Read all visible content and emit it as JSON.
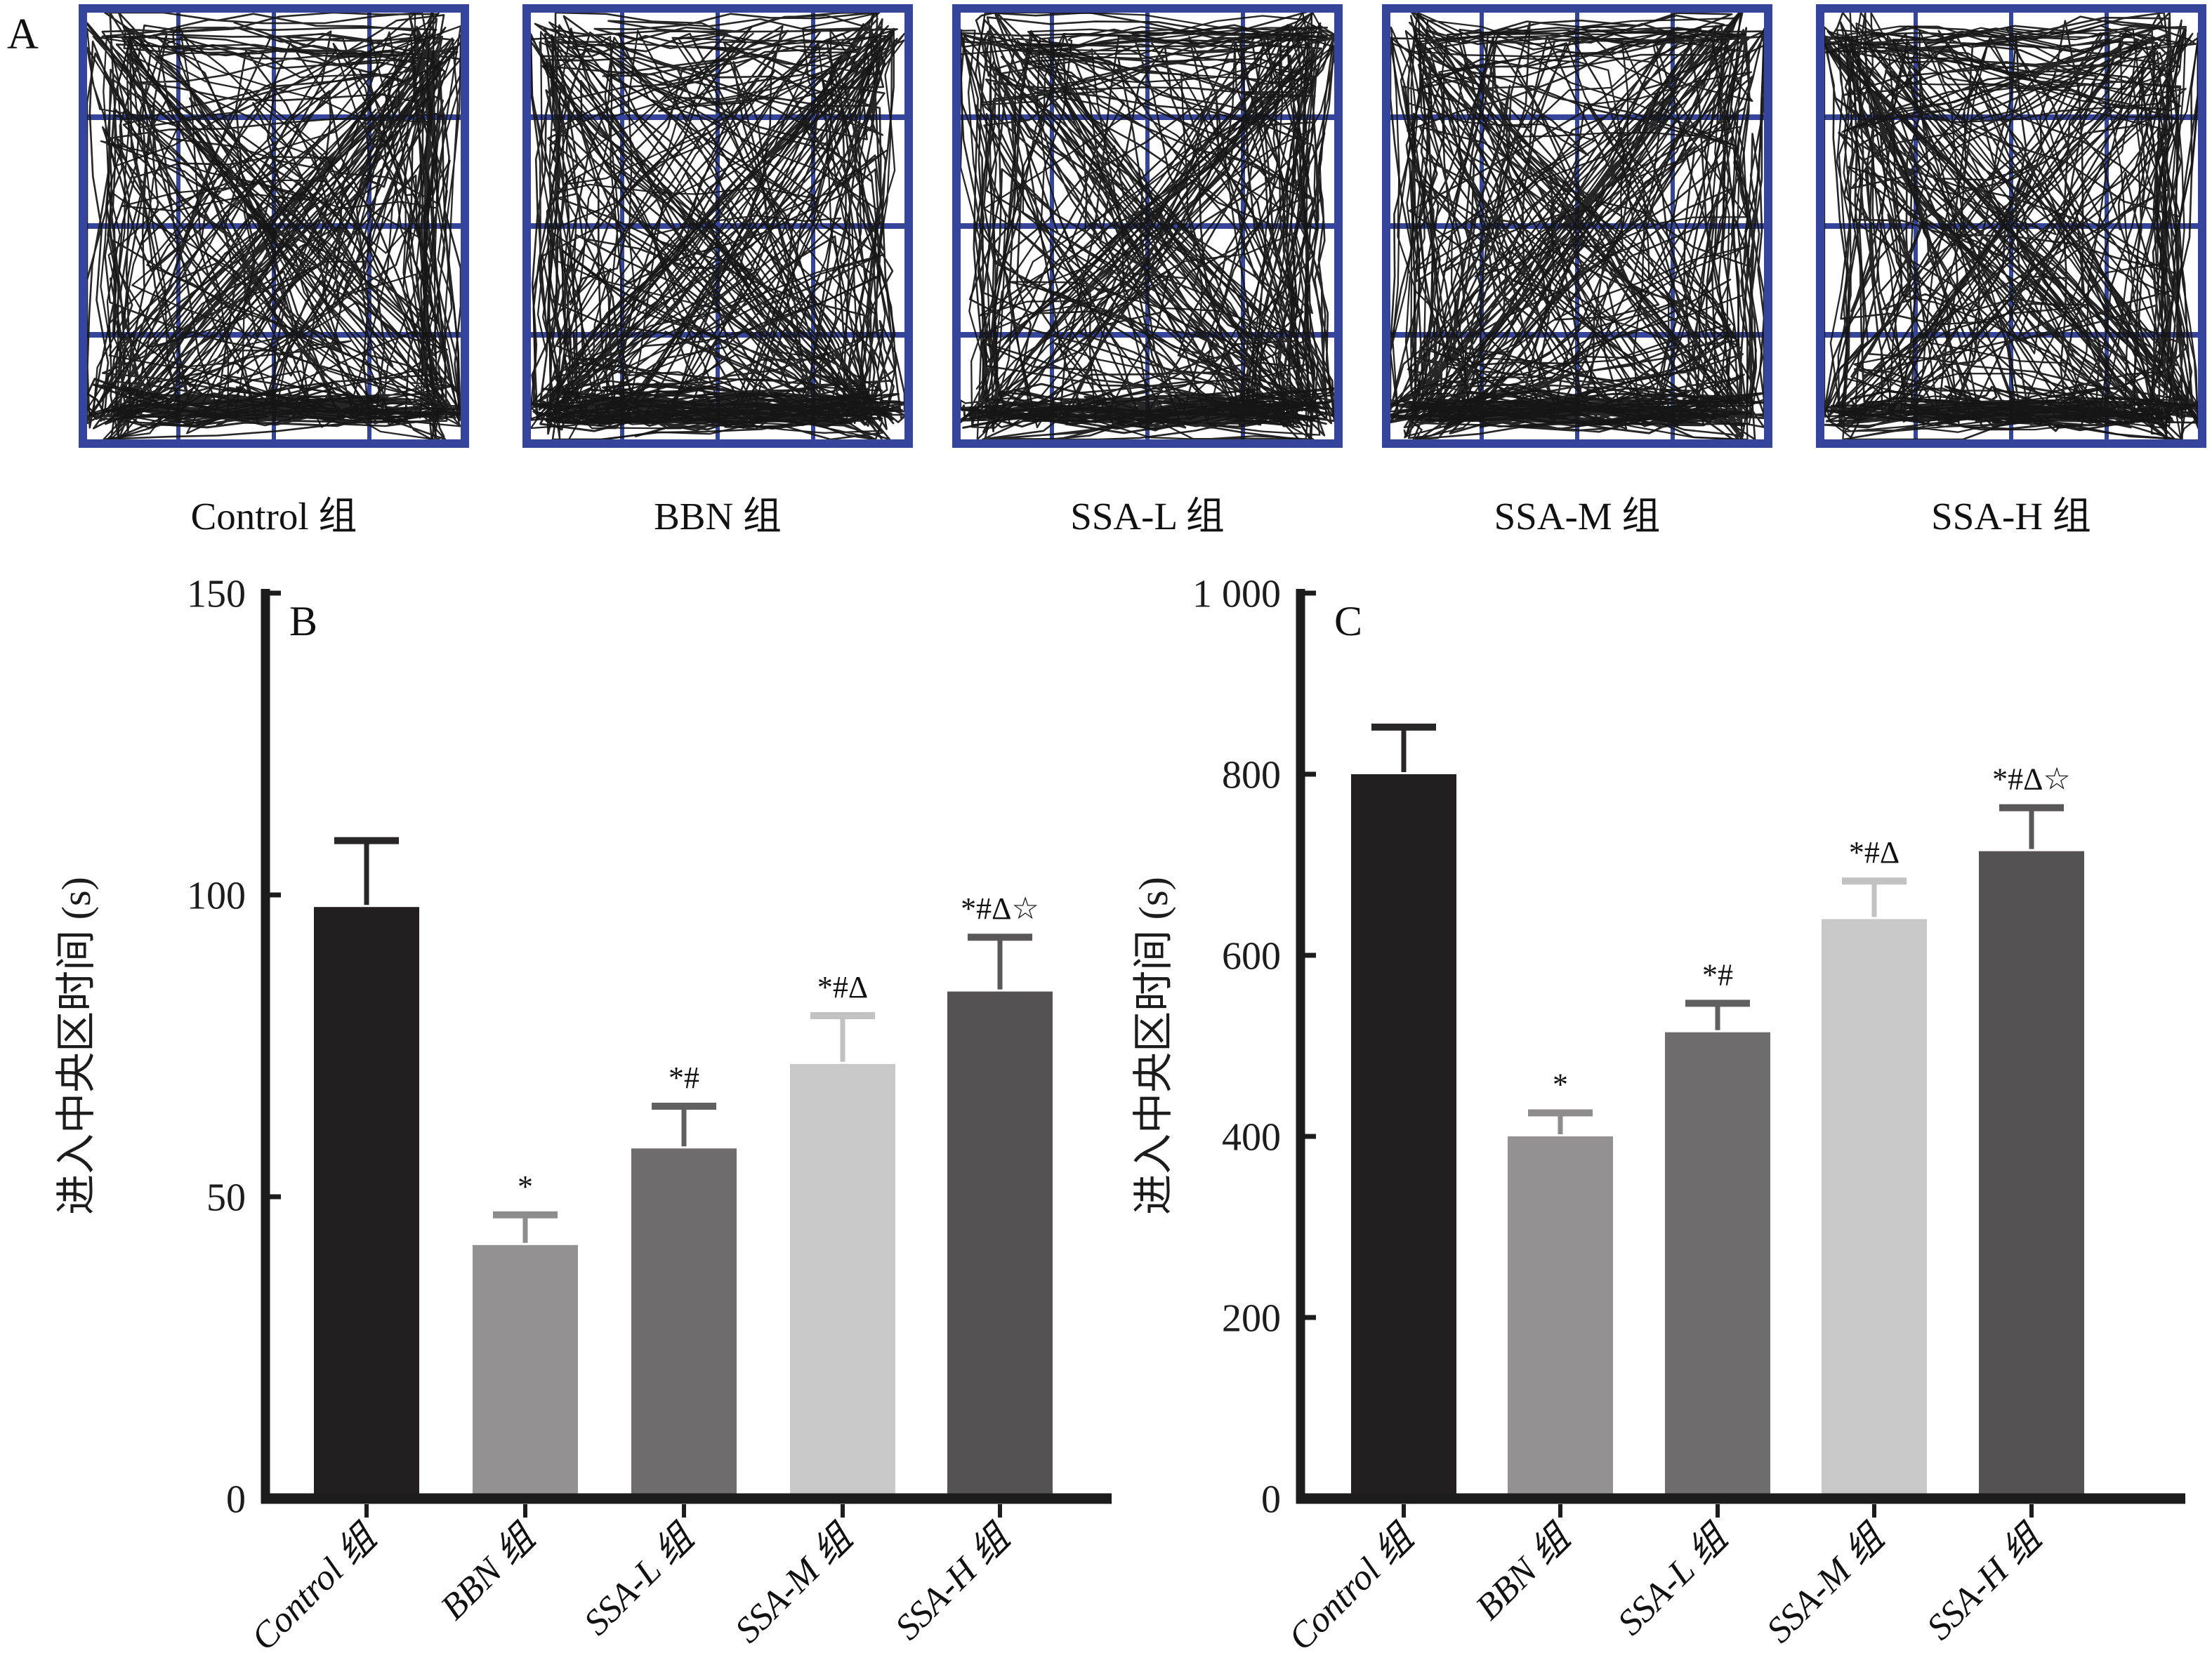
{
  "panels": {
    "a": "A",
    "b": "B",
    "c": "C"
  },
  "panel_a": {
    "groups": [
      "Control 组",
      "BBN 组",
      "SSA-L 组",
      "SSA-M 组",
      "SSA-H 组"
    ],
    "plot_type": "open-field locomotion traces on 4x4 blue grid"
  },
  "colors": {
    "grid_blue": "#36459c",
    "grid_blue_light": "#9aa4d2",
    "trace_black": "#151515",
    "axis_black": "#1c1c1c"
  },
  "chart_data": [
    {
      "id": "B",
      "panel_letter": "B",
      "type": "bar",
      "title": "",
      "categories": [
        "Control 组",
        "BBN 组",
        "SSA-L 组",
        "SSA-M 组",
        "SSA-H 组"
      ],
      "values": [
        98,
        42,
        58,
        72,
        84
      ],
      "errors": [
        11,
        5,
        7,
        8,
        9
      ],
      "annotations": [
        "",
        "*",
        "*#",
        "*#Δ",
        "*#Δ☆"
      ],
      "xlabel": "",
      "ylabel": "进入中央区时间 (s)",
      "ylim": [
        0,
        150
      ],
      "yticks": [
        0,
        50,
        100,
        150
      ],
      "ytick_labels": [
        "0",
        "50",
        "100",
        "150"
      ],
      "grid": false,
      "legend": "none",
      "bar_colors": [
        "#231f20",
        "#949192",
        "#6e6c6d",
        "#c8c8c8",
        "#555253"
      ],
      "error_colors": [
        "#2a2627",
        "#8f8c8d",
        "#606060",
        "#c2c2c2",
        "#5a5758"
      ]
    },
    {
      "id": "C",
      "panel_letter": "C",
      "type": "bar",
      "title": "",
      "categories": [
        "Control 组",
        "BBN 组",
        "SSA-L 组",
        "SSA-M 组",
        "SSA-H 组"
      ],
      "values": [
        800,
        400,
        515,
        640,
        715
      ],
      "errors": [
        52,
        26,
        32,
        42,
        48
      ],
      "annotations": [
        "",
        "*",
        "*#",
        "*#Δ",
        "*#Δ☆"
      ],
      "xlabel": "",
      "ylabel": "进入中央区时间 (s)",
      "ylim": [
        0,
        1000
      ],
      "yticks": [
        0,
        200,
        400,
        600,
        800,
        1000
      ],
      "ytick_labels": [
        "0",
        "200",
        "400",
        "600",
        "800",
        "1 000"
      ],
      "grid": false,
      "legend": "none",
      "bar_colors": [
        "#231f20",
        "#949192",
        "#6e6c6d",
        "#c8c8c8",
        "#555253"
      ],
      "error_colors": [
        "#2a2627",
        "#8f8c8d",
        "#606060",
        "#c2c2c2",
        "#5a5758"
      ]
    }
  ]
}
